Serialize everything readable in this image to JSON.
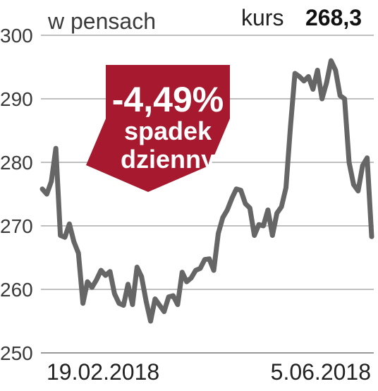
{
  "header": {
    "unit_label": "w pensach",
    "kurs_label": "kurs",
    "kurs_value": "268,3"
  },
  "badge": {
    "change": "-4,49%",
    "line1": "spadek",
    "line2": "dzienny",
    "color": "#a6192e"
  },
  "colors": {
    "line": "#666666",
    "grid": "#999999"
  },
  "chart_data": {
    "type": "line",
    "title": "",
    "xlabel": "",
    "ylabel": "w pensach",
    "ylim": [
      250,
      300
    ],
    "yticks": [
      250,
      260,
      270,
      280,
      290,
      300
    ],
    "grid": true,
    "date_labels": [
      "19.02.2018",
      "5.06.2018"
    ],
    "x_range": [
      "19.02.2018",
      "5.06.2018"
    ],
    "series": [
      {
        "values": [
          275.8,
          275.0,
          277.0,
          282.2,
          268.5,
          268.2,
          270.3,
          267.5,
          265.7,
          257.8,
          261.2,
          260.3,
          261.5,
          263.0,
          262.2,
          262.8,
          259.3,
          257.8,
          257.5,
          260.8,
          257.6,
          263.5,
          262.0,
          258.2,
          255.0,
          258.5,
          257.5,
          256.5,
          258.8,
          259.0,
          257.6,
          262.7,
          261.2,
          261.8,
          263.0,
          263.3,
          264.7,
          264.8,
          263.0,
          268.8,
          271.3,
          272.5,
          274.3,
          275.8,
          275.6,
          273.5,
          272.8,
          268.5,
          270.2,
          270.0,
          272.5,
          268.5,
          272.0,
          273.0,
          276.0,
          285.5,
          294.0,
          293.5,
          292.8,
          293.5,
          291.5,
          294.5,
          290.0,
          292.5,
          296.0,
          294.5,
          290.5,
          290.0,
          280.0,
          276.5,
          275.5,
          279.5,
          280.7,
          268.3
        ]
      }
    ]
  }
}
